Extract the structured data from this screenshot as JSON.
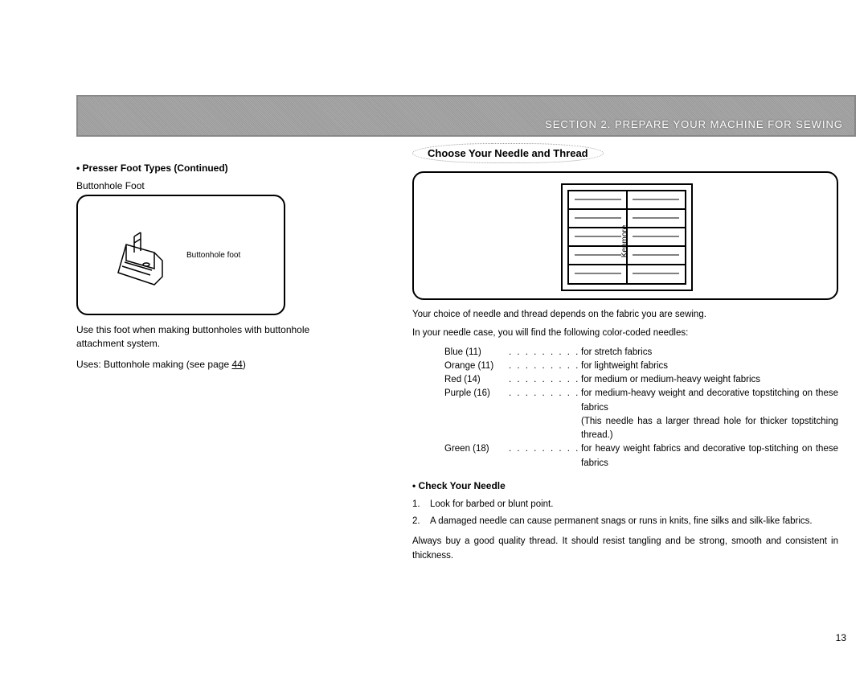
{
  "header": {
    "section_label": "SECTION 2.    PREPARE YOUR MACHINE FOR SEWING"
  },
  "left": {
    "bullet_heading": "•  Presser Foot Types  (Continued)",
    "subheading": "Buttonhole Foot",
    "illus_label": "Buttonhole foot",
    "use_text": "Use this foot when making buttonholes with buttonhole attachment system.",
    "uses_line_prefix": "Uses:   Buttonhole making (see page ",
    "uses_page": "44",
    "uses_line_suffix": ")"
  },
  "right": {
    "oval_title": "Choose Your Needle and Thread",
    "intro1": "Your choice of needle and thread depends on the fabric you are sewing.",
    "intro2": "In your needle case, you will find the following color-coded needles:",
    "needles": [
      {
        "name": "Blue (11)",
        "dots": ". . . . . . . . . .",
        "desc": "for stretch fabrics"
      },
      {
        "name": "Orange (11)",
        "dots": ". . . . . . . . .",
        "desc": "for lightweight fabrics"
      },
      {
        "name": "Red (14)",
        "dots": ". . . . . . . . . .",
        "desc": "for medium or medium-heavy weight fabrics"
      },
      {
        "name": "Purple (16)",
        "dots": ". . . . . . . . .",
        "desc": "for medium-heavy weight and decorative topstitching on these fabrics"
      },
      {
        "name": "",
        "dots": "",
        "desc": "(This needle has a larger thread hole for thicker topstitching thread.)"
      },
      {
        "name": "Green (18)",
        "dots": ". . . . . . . . .",
        "desc": "for heavy weight fabrics and decorative top-stitching on these fabrics"
      }
    ],
    "check_heading": "•  Check Your Needle",
    "check_items": [
      {
        "num": "1.",
        "text": "Look for barbed or blunt point."
      },
      {
        "num": "2.",
        "text": "A damaged needle can cause permanent snags or runs in knits, fine silks and silk-like fabrics."
      }
    ],
    "closing": "Always buy a good quality thread. It should resist tangling and be strong, smooth and consistent in thickness."
  },
  "page_number": "13"
}
